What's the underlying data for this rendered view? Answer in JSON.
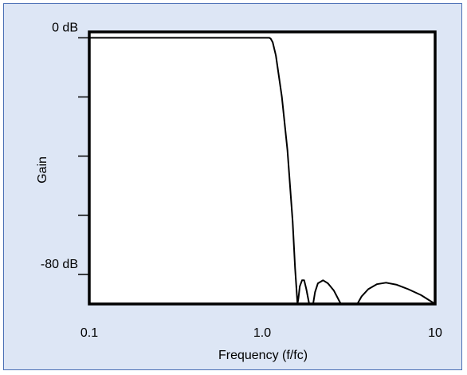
{
  "chart_data": {
    "type": "line",
    "title": "",
    "xlabel": "Frequency (f/fc)",
    "ylabel": "Gain",
    "xscale": "log",
    "xlim": [
      0.1,
      10
    ],
    "ylim": [
      -90,
      2
    ],
    "x_tick_labels": [
      "0.1",
      "1.0",
      "10"
    ],
    "y_tick_labels": [
      {
        "value": 0,
        "label": "0 dB"
      },
      {
        "value": -80,
        "label": "-80 dB"
      }
    ],
    "y_minor_ticks": [
      -20,
      -40,
      -60
    ],
    "grid": false,
    "legend": "none",
    "line_color": "#000000",
    "background_color": "#dde6f5",
    "plot_background": "#ffffff",
    "series": [
      {
        "values": [
          [
            0.1,
            0
          ],
          [
            1.0,
            0
          ],
          [
            1.1,
            0
          ],
          [
            1.12,
            -0.3
          ],
          [
            1.15,
            -1.5
          ],
          [
            1.2,
            -6
          ],
          [
            1.3,
            -20
          ],
          [
            1.4,
            -38
          ],
          [
            1.5,
            -62
          ],
          [
            1.55,
            -78
          ],
          [
            1.6,
            -90
          ],
          [
            1.62,
            -88
          ],
          [
            1.65,
            -84
          ],
          [
            1.7,
            -82
          ],
          [
            1.75,
            -82
          ],
          [
            1.8,
            -85
          ],
          [
            1.87,
            -90
          ],
          [
            1.97,
            -90
          ],
          [
            2.02,
            -86
          ],
          [
            2.1,
            -83
          ],
          [
            2.25,
            -82
          ],
          [
            2.4,
            -83
          ],
          [
            2.6,
            -85.5
          ],
          [
            2.85,
            -90
          ],
          [
            3.55,
            -90
          ],
          [
            3.75,
            -87.5
          ],
          [
            4.1,
            -85
          ],
          [
            4.6,
            -83.3
          ],
          [
            5.2,
            -82.8
          ],
          [
            6.0,
            -83.5
          ],
          [
            7.0,
            -85
          ],
          [
            8.3,
            -87
          ],
          [
            10,
            -90
          ]
        ]
      }
    ]
  }
}
